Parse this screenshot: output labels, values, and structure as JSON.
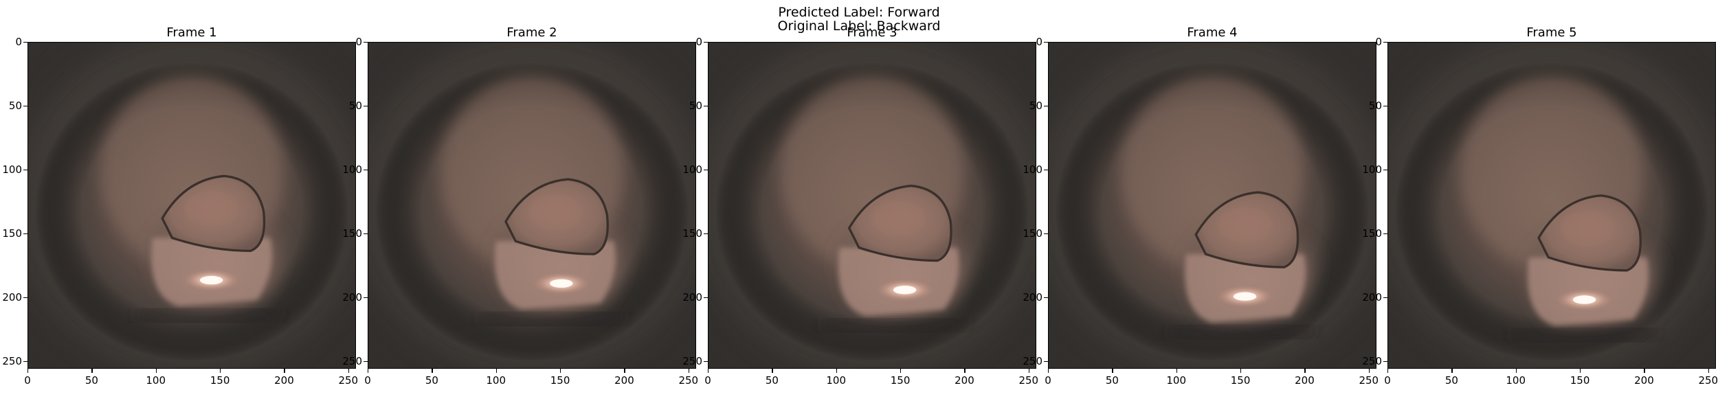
{
  "figure": {
    "suptitle_line1": "Predicted Label: Forward",
    "suptitle_line2": "Original Label: Backward"
  },
  "frames": [
    {
      "title": "Frame 1",
      "light_x": 0.56,
      "light_y": 0.73,
      "hole_x": 0.56,
      "hole_y": 0.56
    },
    {
      "title": "Frame 2",
      "light_x": 0.59,
      "light_y": 0.74,
      "hole_x": 0.57,
      "hole_y": 0.57
    },
    {
      "title": "Frame 3",
      "light_x": 0.6,
      "light_y": 0.76,
      "hole_x": 0.58,
      "hole_y": 0.59
    },
    {
      "title": "Frame 4",
      "light_x": 0.6,
      "light_y": 0.78,
      "hole_x": 0.6,
      "hole_y": 0.61
    },
    {
      "title": "Frame 5",
      "light_x": 0.6,
      "light_y": 0.79,
      "hole_x": 0.61,
      "hole_y": 0.62
    }
  ],
  "axes": {
    "yticks": [
      "0",
      "50",
      "100",
      "150",
      "200",
      "250"
    ],
    "xticks": [
      "0",
      "50",
      "100",
      "150",
      "200",
      "250"
    ],
    "ytick_values": [
      0,
      50,
      100,
      150,
      200,
      250
    ],
    "xtick_values": [
      0,
      50,
      100,
      150,
      200,
      250
    ],
    "extent": 256
  },
  "colors": {
    "background": "#3a3835",
    "tissue": "#8a6e62",
    "highlight": "#fff3e8"
  }
}
